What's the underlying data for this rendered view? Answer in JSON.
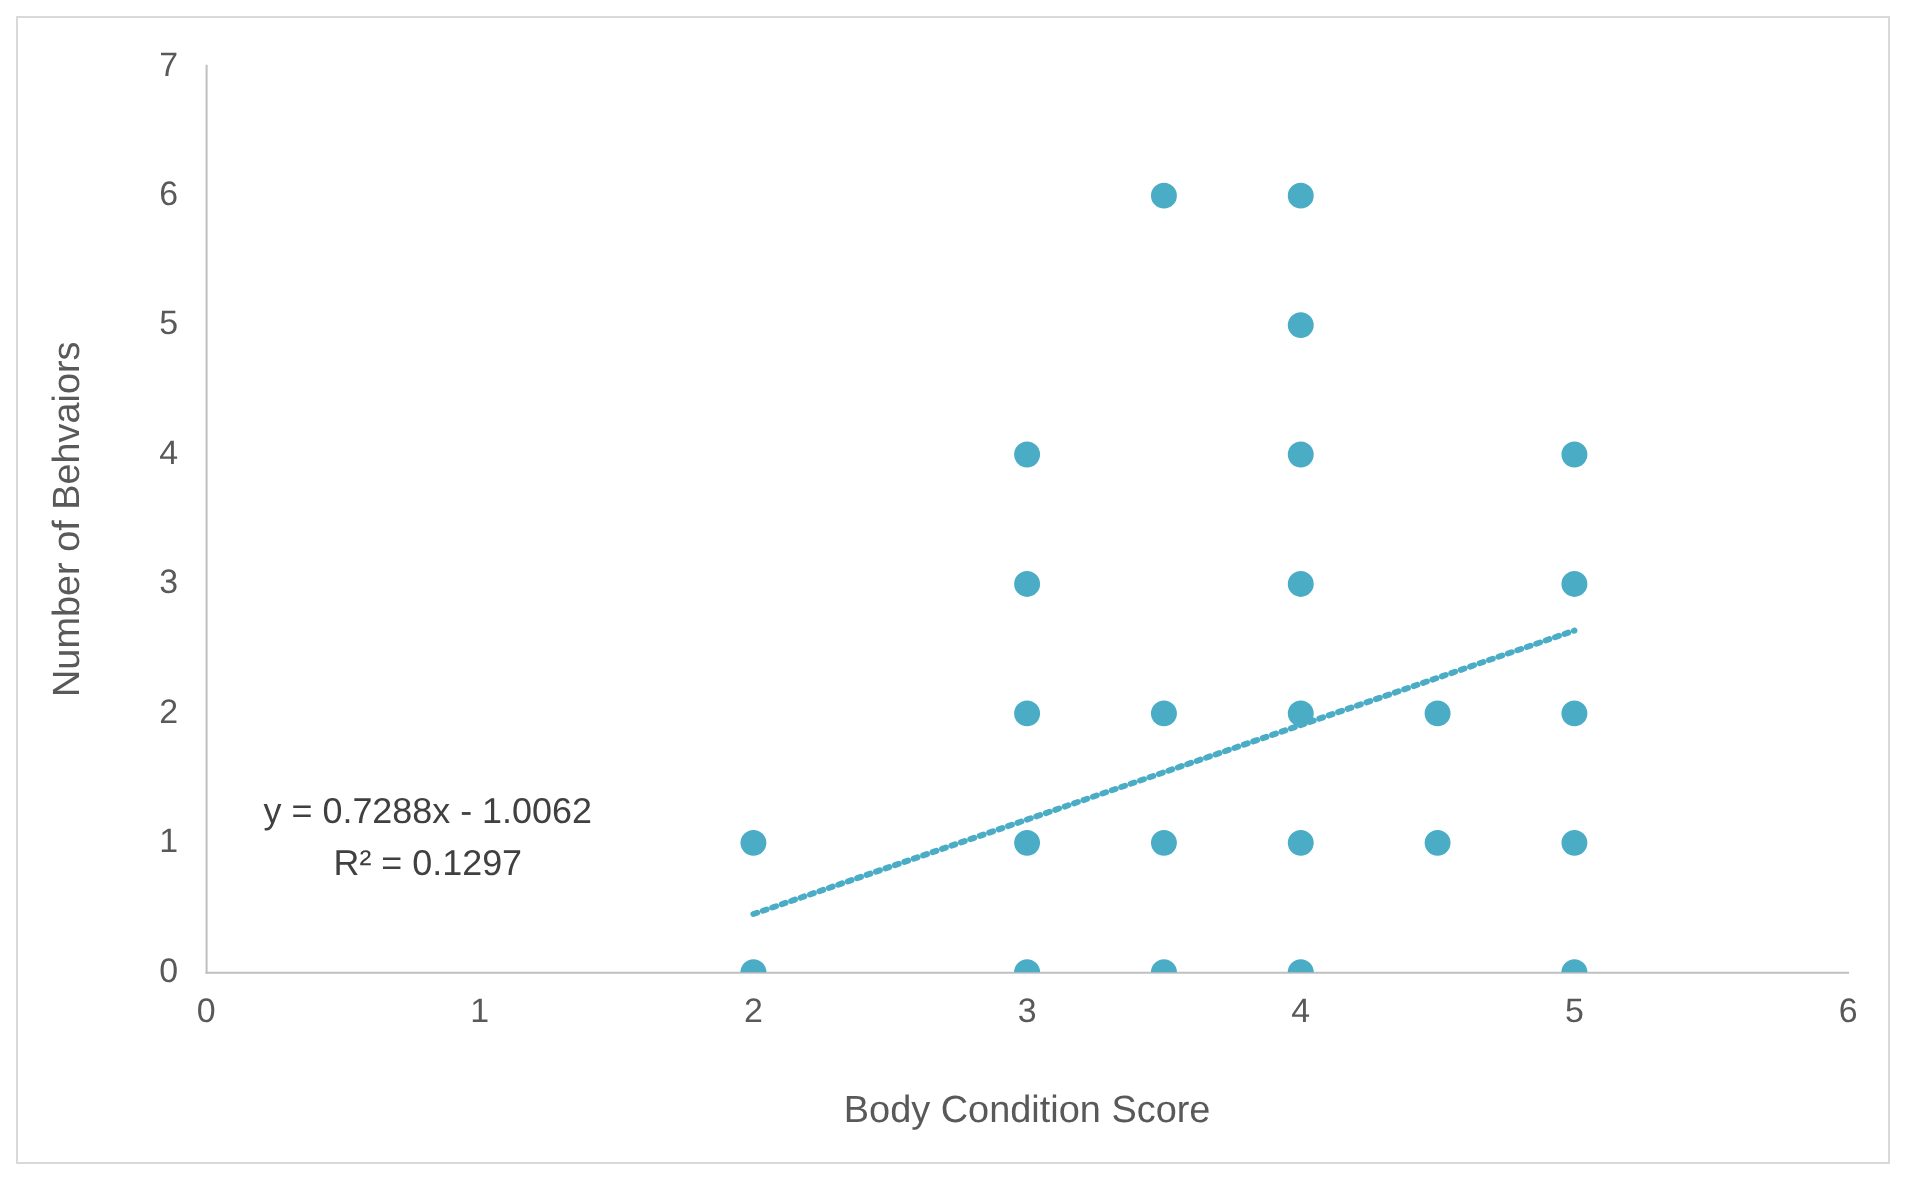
{
  "chart_data": {
    "type": "scatter",
    "xlabel": "Body Condition Score",
    "ylabel": "Number of Behvaiors",
    "annotations": [
      "y = 0.7288x - 1.0062",
      "R² = 0.1297"
    ],
    "xlim": [
      0,
      6
    ],
    "xticks": [
      0,
      1,
      2,
      3,
      4,
      5,
      6
    ],
    "ylim": [
      0,
      7
    ],
    "yticks": [
      0,
      1,
      2,
      3,
      4,
      5,
      6,
      7
    ],
    "grid": false,
    "marker": "circle",
    "series": [
      {
        "type": "scatter",
        "color": "#4bacc6",
        "x": [
          2,
          2,
          3,
          3,
          3,
          3,
          3,
          3.5,
          3.5,
          3.5,
          3.5,
          4,
          4,
          4,
          4,
          4,
          4,
          4,
          4.5,
          4.5,
          5,
          5,
          5,
          5,
          5
        ],
        "values": [
          0,
          1,
          0,
          1,
          2,
          3,
          4,
          0,
          1,
          2,
          6,
          0,
          1,
          2,
          3,
          4,
          5,
          6,
          1,
          2,
          0,
          1,
          2,
          3,
          4
        ]
      },
      {
        "type": "line",
        "color": "#4bacc6",
        "line_style": "dotted",
        "marker": "none",
        "x": [
          2,
          5
        ],
        "values": [
          0.45,
          2.64
        ]
      }
    ]
  }
}
